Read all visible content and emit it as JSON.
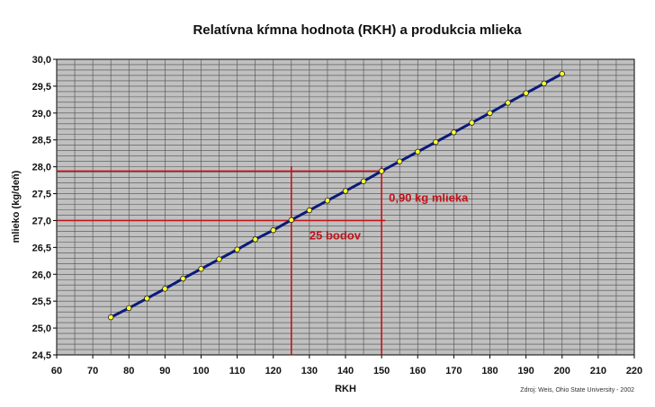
{
  "chart_data": {
    "type": "line",
    "title": "Relatívna kŕmna hodnota (RKH) a produkcia mlieka",
    "xlabel": "RKH",
    "ylabel": "mlieko (kg/deň)",
    "xlim": [
      60,
      220
    ],
    "ylim": [
      24.5,
      30.0
    ],
    "xticks": [
      "60",
      "70",
      "80",
      "90",
      "100",
      "110",
      "120",
      "130",
      "140",
      "150",
      "160",
      "170",
      "180",
      "190",
      "200",
      "210",
      "220"
    ],
    "yticks": [
      "24,5",
      "25,0",
      "25,5",
      "26,0",
      "26,5",
      "27,0",
      "27,5",
      "28,0",
      "28,5",
      "29,0",
      "29,5",
      "30,0"
    ],
    "grid": true,
    "series": [
      {
        "x": [
          75,
          80,
          85,
          90,
          95,
          100,
          105,
          110,
          115,
          120,
          125,
          130,
          135,
          140,
          145,
          150,
          155,
          160,
          165,
          170,
          175,
          180,
          185,
          190,
          195,
          200
        ],
        "values": [
          25.2,
          25.37,
          25.55,
          25.73,
          25.92,
          26.1,
          26.28,
          26.46,
          26.65,
          26.82,
          27.01,
          27.19,
          27.37,
          27.55,
          27.73,
          27.92,
          28.1,
          28.28,
          28.46,
          28.64,
          28.82,
          29.0,
          29.19,
          29.37,
          29.55,
          29.73
        ]
      }
    ],
    "reference_lines": [
      {
        "orientation": "horizontal",
        "y": 27.0,
        "x_to": 151
      },
      {
        "orientation": "horizontal",
        "y": 27.92,
        "x_to": 151
      },
      {
        "orientation": "vertical",
        "x": 125
      },
      {
        "orientation": "vertical",
        "x": 150
      }
    ],
    "annotations": [
      {
        "text": "0,90 kg mlieka",
        "x": 152,
        "y": 27.35
      },
      {
        "text": "25 bodov",
        "x": 130,
        "y": 26.65
      }
    ],
    "source": "Zdroj: Weis, Ohio State University - 2002",
    "colors": {
      "plot_background": "#c0c0c0",
      "grid": "#4d4d4d",
      "line": "#0a1a7a",
      "marker": "#ffff33",
      "reference": "#c0141a"
    }
  }
}
